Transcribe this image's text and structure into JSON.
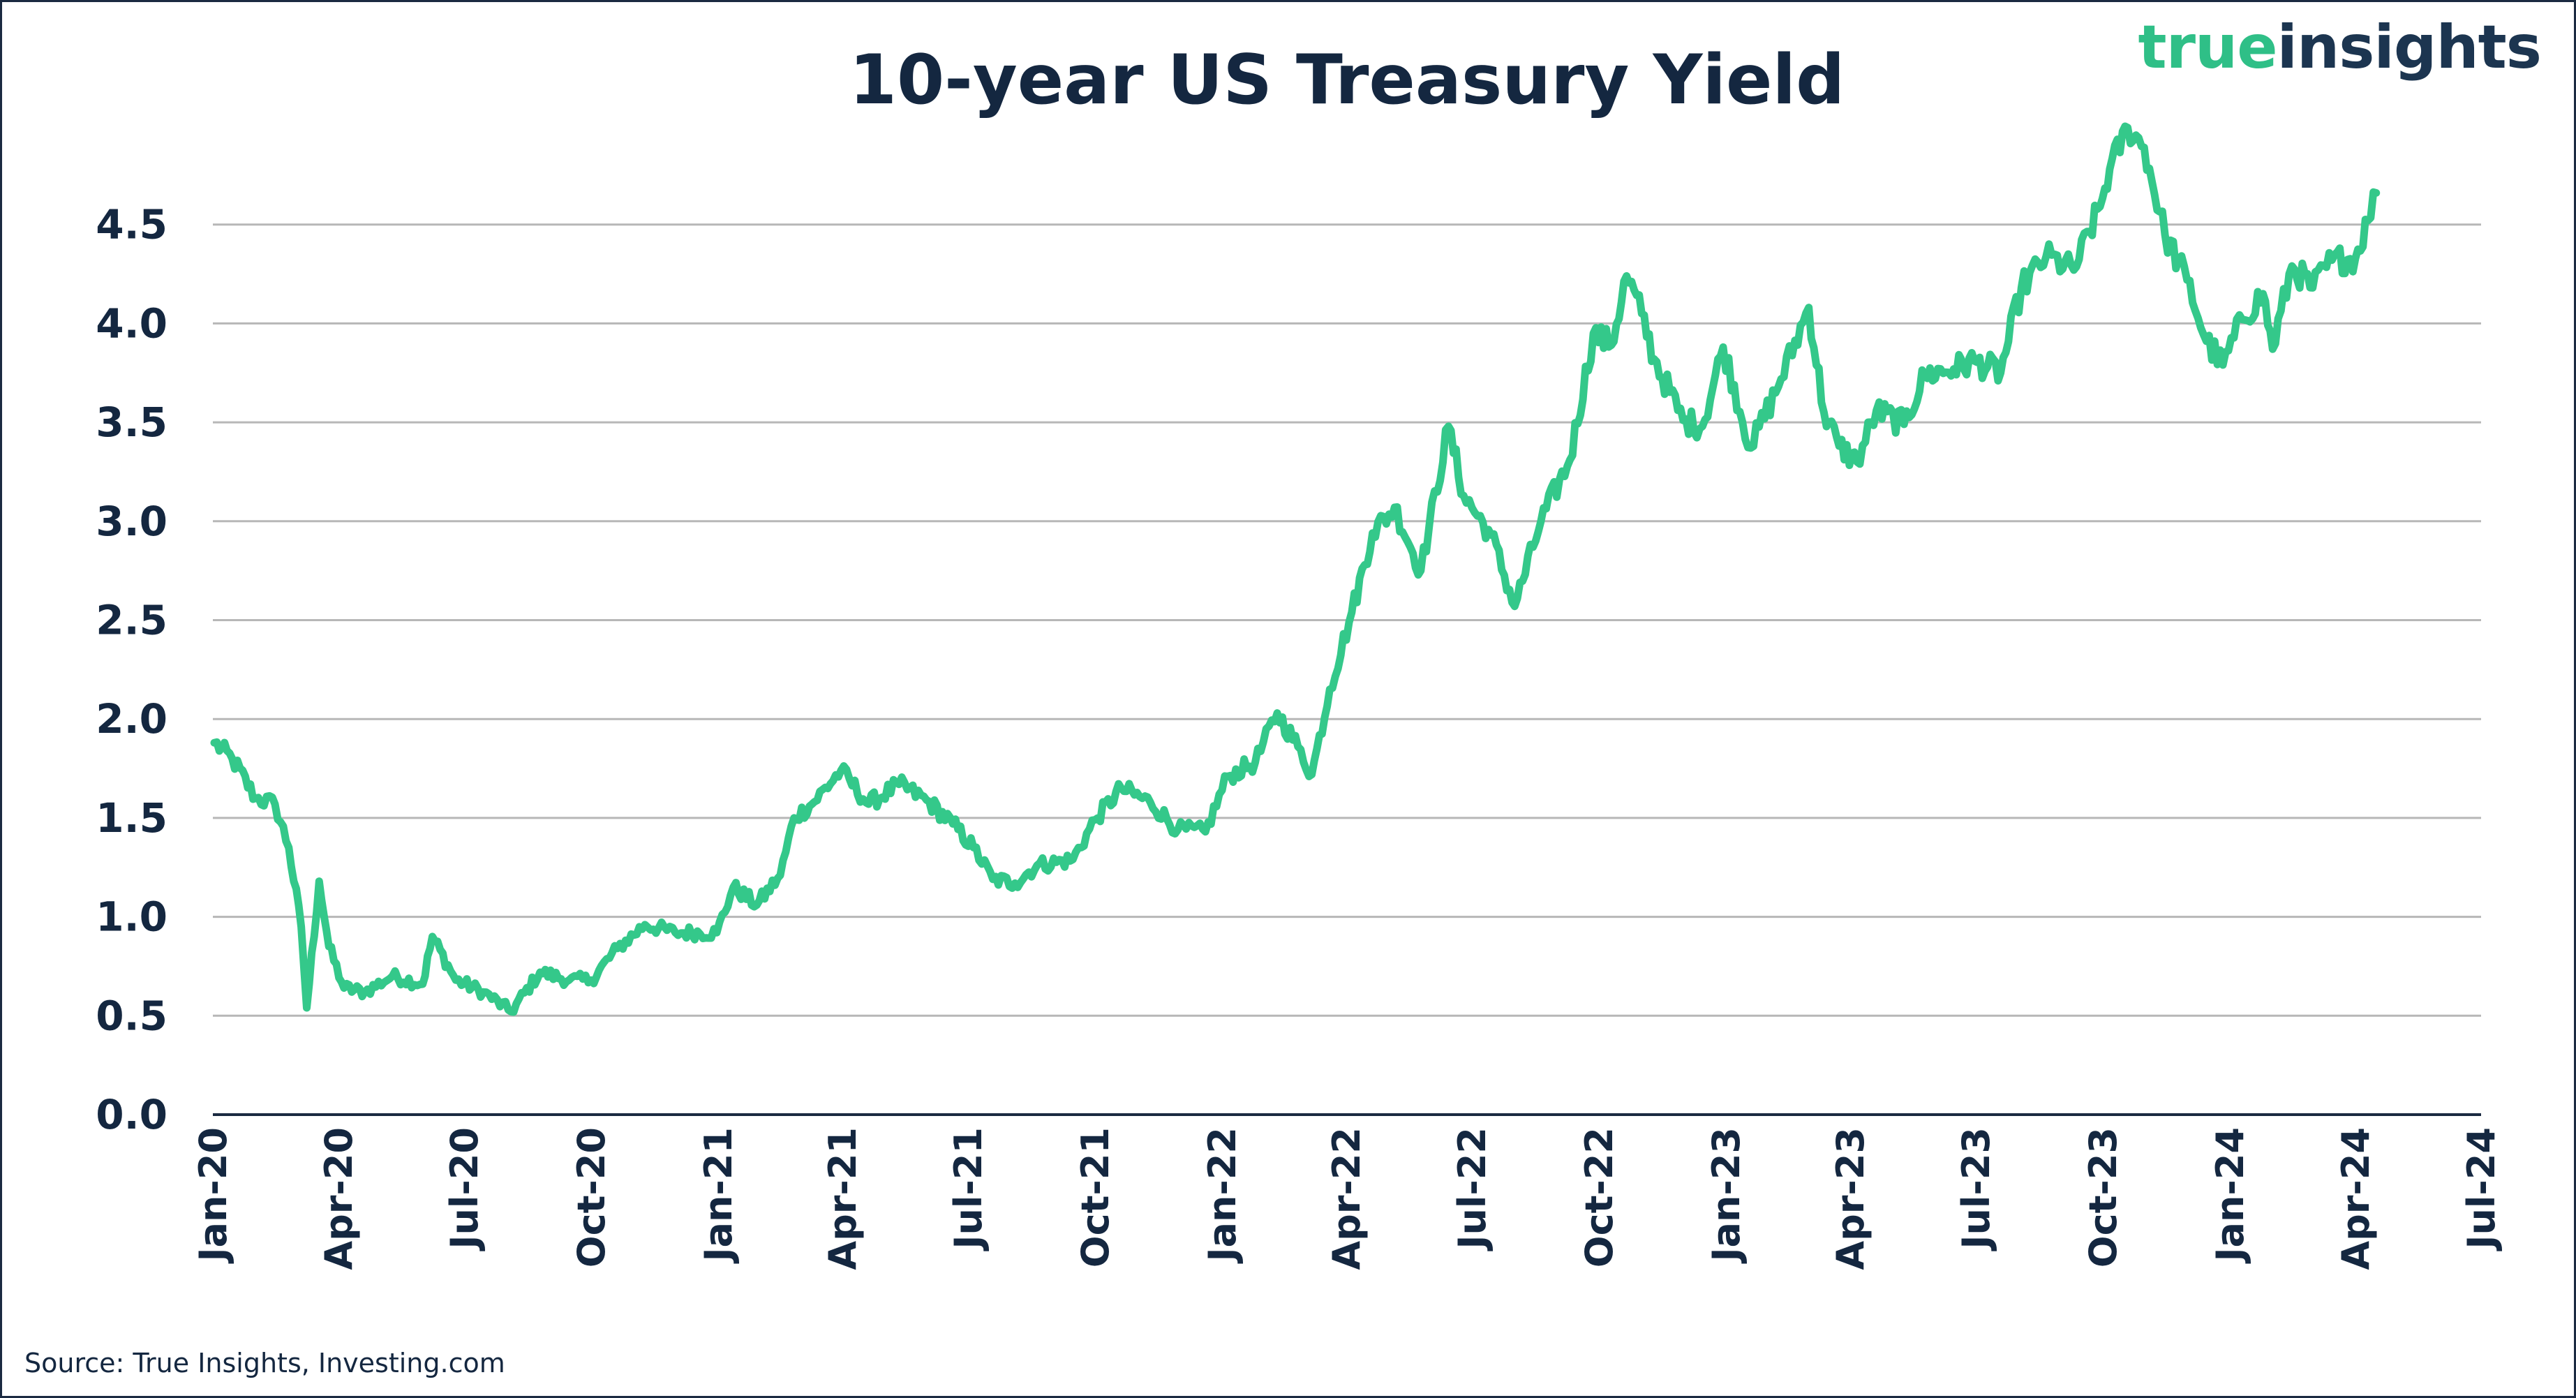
{
  "header": {
    "title": "10-year US Treasury Yield"
  },
  "logo": {
    "word1": "true",
    "word2": "insights"
  },
  "footer": {
    "source": "Source: True Insights, Investing.com"
  },
  "colors": {
    "line": "#34c88a",
    "grid": "#b7b7b7",
    "axis": "#1b2a41",
    "text": "#142740",
    "logo_primary": "#2fbf87",
    "logo_secondary": "#1c3550"
  },
  "chart_data": {
    "type": "line",
    "title": "10-year US Treasury Yield",
    "xlabel": "",
    "ylabel": "",
    "ylim": [
      0,
      5.0
    ],
    "yticks": [
      0.0,
      0.5,
      1.0,
      1.5,
      2.0,
      2.5,
      3.0,
      3.5,
      4.0,
      4.5
    ],
    "ytick_labels": [
      "0.0",
      "0.5",
      "1.0",
      "1.5",
      "2.0",
      "2.5",
      "3.0",
      "3.5",
      "4.0",
      "4.5"
    ],
    "xtick_labels": [
      "Jan-20",
      "Apr-20",
      "Jul-20",
      "Oct-20",
      "Jan-21",
      "Apr-21",
      "Jul-21",
      "Oct-21",
      "Jan-22",
      "Apr-22",
      "Jul-22",
      "Oct-22",
      "Jan-23",
      "Apr-23",
      "Jul-23",
      "Oct-23",
      "Jan-24",
      "Apr-24",
      "Jul-24"
    ],
    "grid": true,
    "legend": "none",
    "series": [
      {
        "x": [
          "2020-01-02",
          "2020-01-15",
          "2020-02-01",
          "2020-02-15",
          "2020-02-25",
          "2020-03-05",
          "2020-03-09",
          "2020-03-18",
          "2020-03-25",
          "2020-04-05",
          "2020-04-20",
          "2020-05-10",
          "2020-06-01",
          "2020-06-08",
          "2020-06-25",
          "2020-07-15",
          "2020-08-04",
          "2020-08-25",
          "2020-09-15",
          "2020-10-01",
          "2020-10-20",
          "2020-11-09",
          "2020-12-01",
          "2020-12-31",
          "2021-01-12",
          "2021-01-29",
          "2021-02-15",
          "2021-02-25",
          "2021-03-10",
          "2021-03-31",
          "2021-04-20",
          "2021-05-12",
          "2021-06-01",
          "2021-06-20",
          "2021-07-05",
          "2021-07-19",
          "2021-08-04",
          "2021-08-20",
          "2021-09-15",
          "2021-10-01",
          "2021-10-20",
          "2021-11-10",
          "2021-11-30",
          "2021-12-20",
          "2022-01-05",
          "2022-01-25",
          "2022-02-10",
          "2022-02-25",
          "2022-03-07",
          "2022-03-20",
          "2022-04-05",
          "2022-04-20",
          "2022-05-06",
          "2022-05-25",
          "2022-06-14",
          "2022-06-25",
          "2022-07-15",
          "2022-08-01",
          "2022-08-20",
          "2022-09-10",
          "2022-09-27",
          "2022-10-10",
          "2022-10-21",
          "2022-11-01",
          "2022-11-10",
          "2022-12-01",
          "2022-12-15",
          "2022-12-30",
          "2023-01-19",
          "2023-02-10",
          "2023-03-02",
          "2023-03-13",
          "2023-03-24",
          "2023-04-06",
          "2023-04-20",
          "2023-05-10",
          "2023-05-25",
          "2023-06-15",
          "2023-06-30",
          "2023-07-19",
          "2023-08-03",
          "2023-08-21",
          "2023-09-10",
          "2023-09-29",
          "2023-10-06",
          "2023-10-19",
          "2023-10-31",
          "2023-11-15",
          "2023-12-01",
          "2023-12-15",
          "2023-12-27",
          "2024-01-10",
          "2024-01-25",
          "2024-02-01",
          "2024-02-15",
          "2024-03-01",
          "2024-03-15",
          "2024-04-01",
          "2024-04-10",
          "2024-04-16"
        ],
        "y": [
          1.88,
          1.8,
          1.6,
          1.57,
          1.35,
          0.95,
          0.54,
          1.18,
          0.85,
          0.64,
          0.62,
          0.7,
          0.66,
          0.9,
          0.68,
          0.62,
          0.52,
          0.72,
          0.68,
          0.68,
          0.84,
          0.96,
          0.92,
          0.92,
          1.15,
          1.06,
          1.21,
          1.5,
          1.57,
          1.74,
          1.57,
          1.67,
          1.59,
          1.47,
          1.35,
          1.19,
          1.17,
          1.26,
          1.29,
          1.49,
          1.65,
          1.58,
          1.44,
          1.43,
          1.71,
          1.78,
          2.03,
          1.86,
          1.72,
          2.15,
          2.54,
          2.94,
          3.07,
          2.75,
          3.48,
          3.13,
          2.93,
          2.57,
          3.0,
          3.31,
          3.95,
          3.89,
          4.24,
          4.05,
          3.82,
          3.51,
          3.48,
          3.88,
          3.37,
          3.72,
          4.08,
          3.55,
          3.38,
          3.3,
          3.56,
          3.49,
          3.74,
          3.77,
          3.81,
          3.75,
          4.18,
          4.34,
          4.27,
          4.59,
          4.78,
          4.99,
          4.89,
          4.45,
          4.22,
          3.91,
          3.79,
          4.02,
          4.15,
          3.87,
          4.29,
          4.18,
          4.32,
          4.33,
          4.52,
          4.66
        ]
      }
    ]
  }
}
